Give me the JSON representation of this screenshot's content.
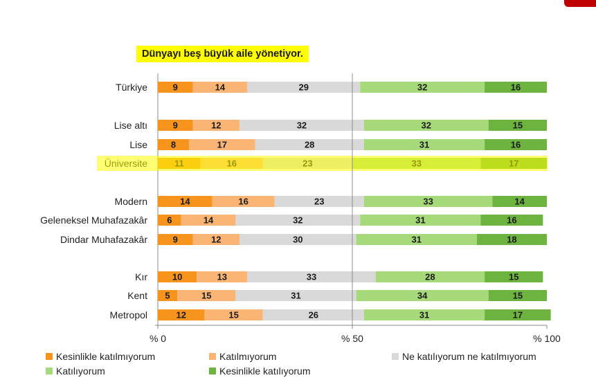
{
  "colors": {
    "strongly_disagree": "#f7941d",
    "disagree": "#fab574",
    "neutral": "#d9d9d9",
    "agree": "#a6d979",
    "strongly_agree": "#6cb33f",
    "highlight": "#ffff00",
    "corner": "#c00000"
  },
  "chart_data": {
    "type": "bar",
    "orientation": "horizontal",
    "stacked": true,
    "title": "Dünyayı beş büyük aile yönetiyor.",
    "highlighted_category": "Üniversite",
    "categories": [
      "Türkiye",
      "Lise altı",
      "Lise",
      "Üniversite",
      "Modern",
      "Geleneksel Muhafazakâr",
      "Dindar Muhafazakâr",
      "Kır",
      "Kent",
      "Metropol"
    ],
    "groups": [
      [
        "Türkiye"
      ],
      [
        "Lise altı",
        "Lise",
        "Üniversite"
      ],
      [
        "Modern",
        "Geleneksel Muhafazakâr",
        "Dindar Muhafazakâr"
      ],
      [
        "Kır",
        "Kent",
        "Metropol"
      ]
    ],
    "series": [
      {
        "name": "Kesinlikle katılmıyorum",
        "color_key": "strongly_disagree",
        "values": [
          9,
          9,
          8,
          11,
          14,
          6,
          9,
          10,
          5,
          12
        ]
      },
      {
        "name": "Katılmıyorum",
        "color_key": "disagree",
        "values": [
          14,
          12,
          17,
          16,
          16,
          14,
          12,
          13,
          15,
          15
        ]
      },
      {
        "name": "Ne katılıyorum ne katılmıyorum",
        "color_key": "neutral",
        "values": [
          29,
          32,
          28,
          23,
          23,
          32,
          30,
          33,
          31,
          26
        ]
      },
      {
        "name": "Katılıyorum",
        "color_key": "agree",
        "values": [
          32,
          32,
          31,
          33,
          33,
          31,
          31,
          28,
          34,
          31
        ]
      },
      {
        "name": "Kesinlikle katılıyorum",
        "color_key": "strongly_agree",
        "values": [
          16,
          15,
          16,
          17,
          14,
          16,
          18,
          15,
          15,
          17
        ]
      }
    ],
    "xlim": [
      0,
      100
    ],
    "xticks": [
      0,
      50,
      100
    ],
    "xtick_labels": [
      "% 0",
      "% 50",
      "% 100"
    ],
    "reference_line": 50,
    "legend_position": "bottom"
  }
}
